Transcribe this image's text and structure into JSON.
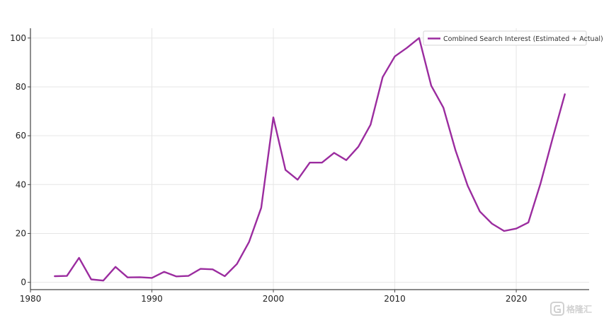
{
  "chart_data": {
    "type": "line",
    "title": "",
    "xlabel": "",
    "ylabel": "",
    "xlim": [
      1980,
      2026
    ],
    "ylim": [
      -3,
      104
    ],
    "x_ticks": [
      1980,
      1990,
      2000,
      2010,
      2020
    ],
    "y_ticks": [
      0,
      20,
      40,
      60,
      80,
      100
    ],
    "grid": true,
    "legend_position": "top-right",
    "series": [
      {
        "name": "Combined Search Interest (Estimated + Actual)",
        "color": "#9b2c9f",
        "x": [
          1982,
          1983,
          1984,
          1985,
          1986,
          1987,
          1988,
          1989,
          1990,
          1991,
          1992,
          1993,
          1994,
          1995,
          1996,
          1997,
          1998,
          1999,
          2000,
          2001,
          2002,
          2003,
          2004,
          2005,
          2006,
          2007,
          2008,
          2009,
          2010,
          2011,
          2012,
          2013,
          2014,
          2015,
          2016,
          2017,
          2018,
          2019,
          2020,
          2021,
          2022,
          2023,
          2024
        ],
        "y": [
          2.5,
          2.6,
          10,
          1.2,
          0.7,
          6.3,
          2.0,
          2.1,
          1.8,
          4.3,
          2.4,
          2.6,
          5.5,
          5.3,
          2.5,
          7.5,
          16.5,
          30.5,
          67.5,
          46,
          42,
          49,
          49,
          53,
          50,
          55.5,
          64.5,
          84,
          92.5,
          96,
          100,
          80.5,
          71.5,
          54,
          39.5,
          29,
          24,
          21,
          22,
          24.5,
          40.5,
          59,
          77
        ]
      }
    ]
  },
  "watermark": {
    "icon": "g-logo-icon",
    "text": "格隆汇"
  }
}
